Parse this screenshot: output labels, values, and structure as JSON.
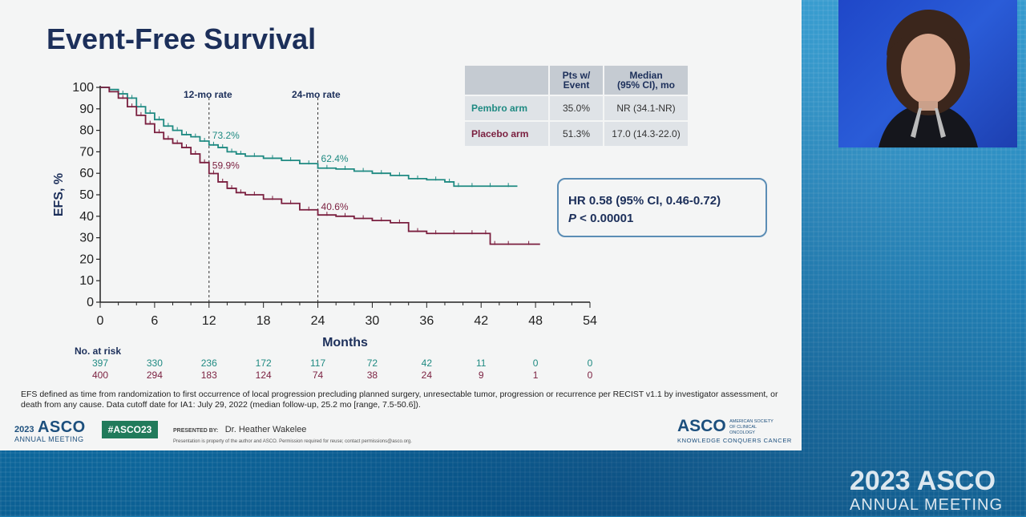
{
  "slide": {
    "title": "Event-Free Survival",
    "rate_12": "12-mo rate",
    "rate_24": "24-mo rate",
    "table": {
      "headers": [
        "",
        "Pts w/\nEvent",
        "Median\n(95% CI), mo"
      ],
      "rows": [
        {
          "arm": "Pembro arm",
          "pts": "35.0%",
          "median": "NR (34.1-NR)"
        },
        {
          "arm": "Placebo arm",
          "pts": "51.3%",
          "median": "17.0 (14.3-22.0)"
        }
      ]
    },
    "hr_line1": "HR 0.58 (95% CI, 0.46-0.72)",
    "hr_p_symbol": "P",
    "hr_p_value": " < 0.00001",
    "footnote": "EFS defined as time from randomization to first occurrence of local progression precluding planned surgery, unresectable tumor, progression or recurrence per RECIST v1.1 by investigator assessment, or death from any cause. Data cutoff date for IA1: July 29, 2022 (median follow-up, 25.2 mo [range, 7.5-50.6])."
  },
  "footer": {
    "year": "2023",
    "asco": "ASCO",
    "annual_meeting": "ANNUAL MEETING",
    "hashtag": "#ASCO23",
    "presented_by": "PRESENTED BY:",
    "presenter": "Dr. Heather Wakelee",
    "note": "Presentation is property of the author and ASCO. Permission required for reuse; contact permissions@asco.org.",
    "asco_word": "ASCO",
    "society": "AMERICAN SOCIETY OF CLINICAL ONCOLOGY",
    "tagline": "KNOWLEDGE CONQUERS CANCER"
  },
  "watermark": {
    "line1": "2023 ASCO",
    "line2": "ANNUAL MEETING"
  },
  "colors": {
    "pembro": "#1f8a82",
    "placebo": "#7a1f3f",
    "title": "#1c2f5a"
  },
  "chart_data": {
    "type": "line",
    "title": "",
    "xlabel": "Months",
    "ylabel": "EFS, %",
    "xlim": [
      0,
      54
    ],
    "ylim": [
      0,
      100
    ],
    "xticks": [
      0,
      6,
      12,
      18,
      24,
      30,
      36,
      42,
      48,
      54
    ],
    "yticks": [
      0,
      10,
      20,
      30,
      40,
      50,
      60,
      70,
      80,
      90,
      100
    ],
    "series": [
      {
        "name": "Pembro arm",
        "x": [
          0,
          1,
          2,
          3,
          4,
          5,
          6,
          7,
          8,
          9,
          10,
          11,
          12,
          13,
          14,
          15,
          16,
          18,
          20,
          22,
          24,
          26,
          28,
          30,
          32,
          34,
          36,
          38,
          39,
          40,
          42,
          44,
          46
        ],
        "y": [
          100,
          99,
          97,
          95,
          91,
          88,
          85,
          82,
          80,
          78,
          77,
          75,
          73.2,
          72,
          70,
          69,
          68,
          67,
          66,
          64.5,
          62.4,
          62,
          61,
          60,
          59,
          57.5,
          57,
          56,
          54,
          54,
          54,
          54,
          54
        ]
      },
      {
        "name": "Placebo arm",
        "x": [
          0,
          1,
          2,
          3,
          4,
          5,
          6,
          7,
          8,
          9,
          10,
          11,
          12,
          13,
          14,
          15,
          16,
          18,
          20,
          22,
          24,
          26,
          28,
          30,
          32,
          34,
          36,
          38,
          40,
          42,
          43,
          44,
          46,
          48.5
        ],
        "y": [
          100,
          98,
          95,
          91,
          87,
          83,
          79,
          76,
          74,
          72,
          69,
          65,
          59.9,
          56,
          53,
          51,
          50,
          48,
          46,
          43,
          40.6,
          40,
          39,
          38,
          37,
          33,
          32,
          32,
          32,
          32,
          27,
          27,
          27,
          27
        ]
      }
    ],
    "annotations": [
      {
        "x": 12,
        "y": 73.2,
        "text": "73.2%",
        "series": "Pembro arm"
      },
      {
        "x": 24,
        "y": 62.4,
        "text": "62.4%",
        "series": "Pembro arm"
      },
      {
        "x": 12,
        "y": 59.9,
        "text": "59.9%",
        "series": "Placebo arm"
      },
      {
        "x": 24,
        "y": 40.6,
        "text": "40.6%",
        "series": "Placebo arm"
      }
    ],
    "reference_lines_x": [
      12,
      24
    ],
    "at_risk": {
      "label": "No. at risk",
      "times": [
        0,
        6,
        12,
        18,
        24,
        30,
        36,
        42,
        48,
        54
      ],
      "pembro": [
        397,
        330,
        236,
        172,
        117,
        72,
        42,
        11,
        0,
        0
      ],
      "placebo": [
        400,
        294,
        183,
        124,
        74,
        38,
        24,
        9,
        1,
        0
      ]
    },
    "grid": false,
    "legend": "none"
  }
}
